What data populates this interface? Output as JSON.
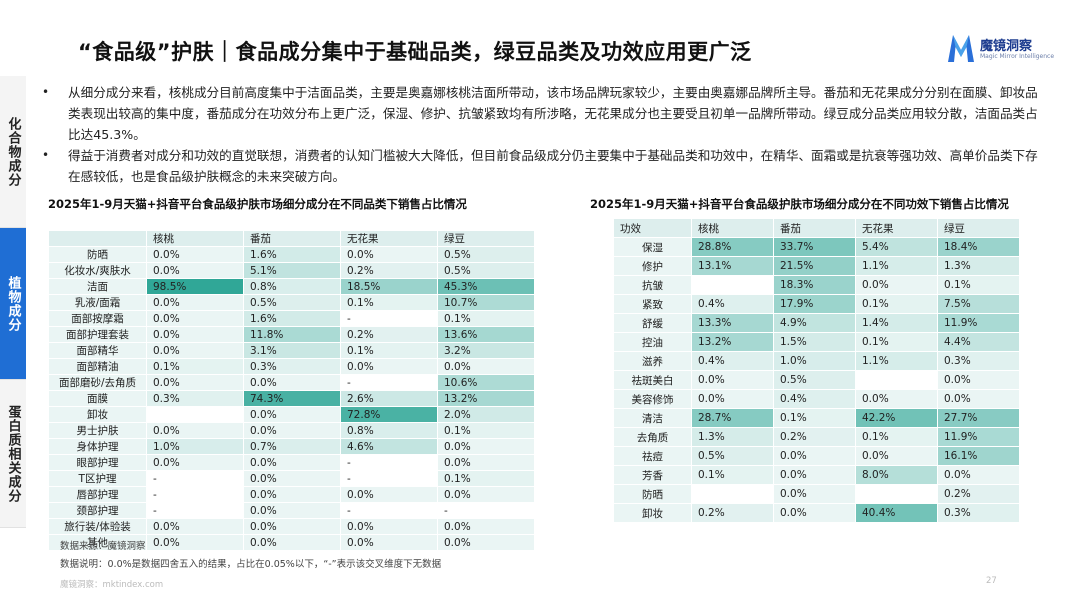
{
  "title": "“食品级”护肤｜食品成分集中于基础品类，绿豆品类及功效应用更广泛",
  "logo": {
    "cn": "魔镜洞察",
    "en": "Magic Mirror Intelligence"
  },
  "sidetabs": [
    "化合物成分",
    "植物成分",
    "蛋白质相关成分"
  ],
  "bullets": [
    "从细分成分来看，核桃成分目前高度集中于洁面品类，主要是奥嘉娜核桃洁面所带动，该市场品牌玩家较少，主要由奥嘉娜品牌所主导。番茄和无花果成分分别在面膜、卸妆品类表现出较高的集中度，番茄成分在功效分布上更广泛，保湿、修护、抗皱紧致均有所涉略，无花果成分也主要受且初单一品牌所带动。绿豆成分品类应用较分散，洁面品类占比达45.3%。",
    "得益于消费者对成分和功效的直觉联想，消费者的认知门槛被大大降低，但目前食品级成分仍主要集中于基础品类和功效中，在精华、面霜或是抗衰等强功效、高单价品类下存在感较低，也是食品级护肤概念的未来突破方向。"
  ],
  "table1": {
    "title": "2025年1-9月天猫+抖音平台食品级护肤市场细分成分在不同品类下销售占比情况",
    "columns": [
      "",
      "核桃",
      "番茄",
      "无花果",
      "绿豆"
    ],
    "rows": [
      [
        "防晒",
        "0.0%",
        "1.6%",
        "0.0%",
        "0.5%"
      ],
      [
        "化妆水/爽肤水",
        "0.0%",
        "5.1%",
        "0.2%",
        "0.5%"
      ],
      [
        "洁面",
        "98.5%",
        "0.8%",
        "18.5%",
        "45.3%"
      ],
      [
        "乳液/面霜",
        "0.0%",
        "0.5%",
        "0.1%",
        "10.7%"
      ],
      [
        "面部按摩霜",
        "0.0%",
        "1.6%",
        "-",
        "0.1%"
      ],
      [
        "面部护理套装",
        "0.0%",
        "11.8%",
        "0.2%",
        "13.6%"
      ],
      [
        "面部精华",
        "0.0%",
        "3.1%",
        "0.1%",
        "3.2%"
      ],
      [
        "面部精油",
        "0.1%",
        "0.3%",
        "0.0%",
        "0.0%"
      ],
      [
        "面部磨砂/去角质",
        "0.0%",
        "0.0%",
        "-",
        "10.6%"
      ],
      [
        "面膜",
        "0.3%",
        "74.3%",
        "2.6%",
        "13.2%"
      ],
      [
        "卸妆",
        "",
        "0.0%",
        "72.8%",
        "2.0%"
      ],
      [
        "男士护肤",
        "0.0%",
        "0.0%",
        "0.8%",
        "0.1%"
      ],
      [
        "身体护理",
        "1.0%",
        "0.7%",
        "4.6%",
        "0.0%"
      ],
      [
        "眼部护理",
        "0.0%",
        "0.0%",
        "-",
        "0.0%"
      ],
      [
        "T区护理",
        "-",
        "0.0%",
        "-",
        "0.1%"
      ],
      [
        "唇部护理",
        "-",
        "0.0%",
        "0.0%",
        "0.0%"
      ],
      [
        "颈部护理",
        "-",
        "0.0%",
        "-",
        "-"
      ],
      [
        "旅行装/体验装",
        "0.0%",
        "0.0%",
        "0.0%",
        "0.0%"
      ],
      [
        "其他",
        "0.0%",
        "0.0%",
        "0.0%",
        "0.0%"
      ]
    ]
  },
  "table2": {
    "title": "2025年1-9月天猫+抖音平台食品级护肤市场细分成分在不同功效下销售占比情况",
    "columns": [
      "功效",
      "核桃",
      "番茄",
      "无花果",
      "绿豆"
    ],
    "rows": [
      [
        "保湿",
        "28.8%",
        "33.7%",
        "5.4%",
        "18.4%"
      ],
      [
        "修护",
        "13.1%",
        "21.5%",
        "1.1%",
        "1.3%"
      ],
      [
        "抗皱",
        "",
        "18.3%",
        "0.0%",
        "0.1%"
      ],
      [
        "紧致",
        "0.4%",
        "17.9%",
        "0.1%",
        "7.5%"
      ],
      [
        "舒缓",
        "13.3%",
        "4.9%",
        "1.4%",
        "11.9%"
      ],
      [
        "控油",
        "13.2%",
        "1.5%",
        "0.1%",
        "4.4%"
      ],
      [
        "滋养",
        "0.4%",
        "1.0%",
        "1.1%",
        "0.3%"
      ],
      [
        "祛斑美白",
        "0.0%",
        "0.5%",
        "",
        "0.0%"
      ],
      [
        "美容修饰",
        "0.0%",
        "0.4%",
        "0.0%",
        "0.0%"
      ],
      [
        "清洁",
        "28.7%",
        "0.1%",
        "42.2%",
        "27.7%"
      ],
      [
        "去角质",
        "1.3%",
        "0.2%",
        "0.1%",
        "11.9%"
      ],
      [
        "祛痘",
        "0.5%",
        "0.0%",
        "0.0%",
        "16.1%"
      ],
      [
        "芳香",
        "0.1%",
        "0.0%",
        "8.0%",
        "0.0%"
      ],
      [
        "防晒",
        "",
        "0.0%",
        "",
        "0.2%"
      ],
      [
        "卸妆",
        "0.2%",
        "0.0%",
        "40.4%",
        "0.3%"
      ]
    ]
  },
  "notes": {
    "source": "数据来源：魔镜洞察",
    "explain": "数据说明：0.0%是数据四舍五入的结果，占比在0.05%以下，“-”表示该交叉维度下无数据"
  },
  "footer": "魔镜洞察：mktindex.com",
  "page_number": "27",
  "colors": {
    "accent": "#1f6ed4",
    "header_cell": "#ddeeed",
    "label_cell": "#eaf5f4"
  }
}
